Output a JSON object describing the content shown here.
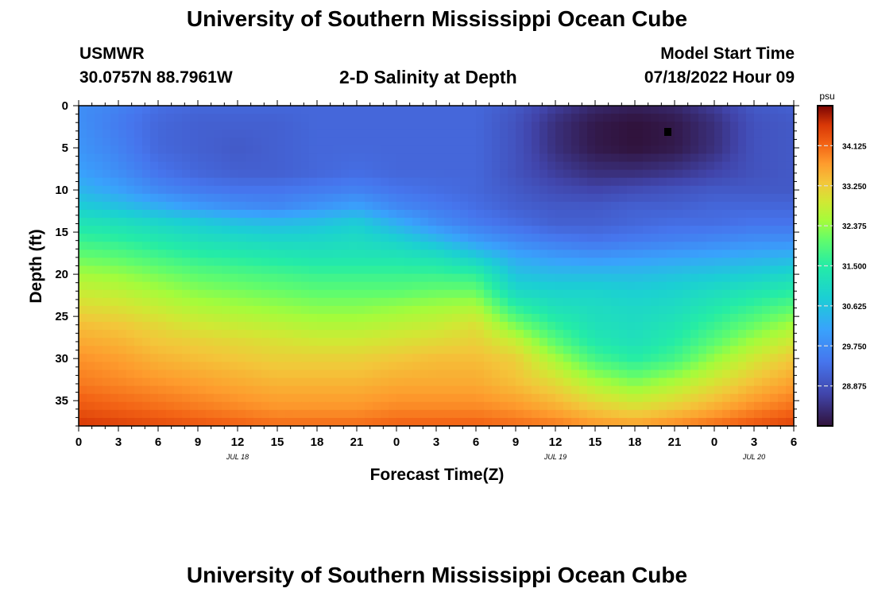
{
  "page": {
    "title": "University of Southern Mississippi Ocean Cube",
    "footer_title": "University of Southern Mississippi Ocean Cube"
  },
  "header": {
    "station": "USMWR",
    "coords": "30.0757N  88.7961W",
    "plot_title": "2-D Salinity at Depth",
    "model_label": "Model Start Time",
    "model_time": "07/18/2022 Hour 09"
  },
  "chart_data": {
    "type": "heatmap",
    "title": "2-D Salinity at Depth",
    "xlabel": "Forecast Time(Z)",
    "ylabel": "Depth (ft)",
    "x_start": 0,
    "x_end": 54,
    "x_ticks": [
      {
        "hour": 0,
        "label": "0"
      },
      {
        "hour": 3,
        "label": "3"
      },
      {
        "hour": 6,
        "label": "6"
      },
      {
        "hour": 9,
        "label": "9"
      },
      {
        "hour": 12,
        "label": "12"
      },
      {
        "hour": 15,
        "label": "15"
      },
      {
        "hour": 18,
        "label": "18"
      },
      {
        "hour": 21,
        "label": "21"
      },
      {
        "hour": 24,
        "label": "0"
      },
      {
        "hour": 27,
        "label": "3"
      },
      {
        "hour": 30,
        "label": "6"
      },
      {
        "hour": 33,
        "label": "9"
      },
      {
        "hour": 36,
        "label": "12"
      },
      {
        "hour": 39,
        "label": "15"
      },
      {
        "hour": 42,
        "label": "18"
      },
      {
        "hour": 45,
        "label": "21"
      },
      {
        "hour": 48,
        "label": "0"
      },
      {
        "hour": 51,
        "label": "3"
      },
      {
        "hour": 54,
        "label": "6"
      }
    ],
    "date_labels": [
      {
        "hour": 12,
        "label": "JUL 18"
      },
      {
        "hour": 36,
        "label": "JUL 19"
      },
      {
        "hour": 51,
        "label": "JUL 20"
      }
    ],
    "ylim": [
      0,
      38
    ],
    "y_ticks": [
      0,
      5,
      10,
      15,
      20,
      25,
      30,
      35
    ],
    "colorbar": {
      "unit": "psu",
      "min": 28.0,
      "max": 35.0,
      "tick_values": [
        28.875,
        29.75,
        30.625,
        31.5,
        32.375,
        33.25,
        34.125
      ],
      "tick_labels": [
        "28.875",
        "29.750",
        "30.625",
        "31.500",
        "32.375",
        "33.250",
        "34.125"
      ]
    },
    "z_hours": [
      0,
      3,
      6,
      9,
      12,
      15,
      18,
      21,
      24,
      27,
      30,
      33,
      36,
      39,
      42,
      45,
      48,
      51,
      54
    ],
    "z_depths": [
      0,
      2,
      5,
      8,
      10,
      12,
      14,
      16,
      18,
      20,
      22,
      24,
      26,
      28,
      30,
      33,
      36,
      38
    ],
    "z_values": [
      [
        29.8,
        29.6,
        29.3,
        29.2,
        29.2,
        29.2,
        29.2,
        29.2,
        29.2,
        29.2,
        29.2,
        29.0,
        28.6,
        28.3,
        28.2,
        28.3,
        28.6,
        29.0,
        29.1
      ],
      [
        29.8,
        29.5,
        29.2,
        29.1,
        29.1,
        29.1,
        29.2,
        29.2,
        29.2,
        29.2,
        29.2,
        28.9,
        28.4,
        28.1,
        28.0,
        28.1,
        28.4,
        28.9,
        29.0
      ],
      [
        29.9,
        29.6,
        29.2,
        29.1,
        29.0,
        29.1,
        29.2,
        29.2,
        29.2,
        29.2,
        29.2,
        28.9,
        28.4,
        28.1,
        28.0,
        28.1,
        28.4,
        28.9,
        29.0
      ],
      [
        30.1,
        29.8,
        29.4,
        29.2,
        29.1,
        29.1,
        29.2,
        29.3,
        29.2,
        29.2,
        29.2,
        28.9,
        28.6,
        28.4,
        28.4,
        28.5,
        28.7,
        28.9,
        29.0
      ],
      [
        30.4,
        30.1,
        29.7,
        29.5,
        29.4,
        29.4,
        29.5,
        29.6,
        29.4,
        29.3,
        29.2,
        29.0,
        28.8,
        28.7,
        28.8,
        28.9,
        29.0,
        29.0,
        29.0
      ],
      [
        30.8,
        30.6,
        30.3,
        30.0,
        29.8,
        29.7,
        29.9,
        30.1,
        29.7,
        29.5,
        29.3,
        29.1,
        29.0,
        29.0,
        29.1,
        29.1,
        29.2,
        29.2,
        29.2
      ],
      [
        31.3,
        31.2,
        31.0,
        30.8,
        30.6,
        30.5,
        30.6,
        30.8,
        30.3,
        29.8,
        29.5,
        29.3,
        29.1,
        29.1,
        29.2,
        29.3,
        29.3,
        29.4,
        29.4
      ],
      [
        31.7,
        31.6,
        31.4,
        31.2,
        31.1,
        31.0,
        31.0,
        31.1,
        30.9,
        30.5,
        30.0,
        29.7,
        29.5,
        29.4,
        29.5,
        29.6,
        29.7,
        29.8,
        29.8
      ],
      [
        32.1,
        32.0,
        31.8,
        31.6,
        31.5,
        31.4,
        31.3,
        31.3,
        31.3,
        31.2,
        30.8,
        30.2,
        30.0,
        29.9,
        30.0,
        30.1,
        30.2,
        30.3,
        30.4
      ],
      [
        32.5,
        32.4,
        32.2,
        32.0,
        31.9,
        31.8,
        31.7,
        31.7,
        31.7,
        31.7,
        31.6,
        30.6,
        30.5,
        30.5,
        30.5,
        30.6,
        30.7,
        30.8,
        31.0
      ],
      [
        32.8,
        32.7,
        32.5,
        32.3,
        32.2,
        32.1,
        32.0,
        32.0,
        32.0,
        32.1,
        32.1,
        31.0,
        30.9,
        30.9,
        30.8,
        30.9,
        31.1,
        31.3,
        31.5
      ],
      [
        33.1,
        33.0,
        32.8,
        32.6,
        32.5,
        32.4,
        32.3,
        32.3,
        32.4,
        32.5,
        32.6,
        31.6,
        31.2,
        31.1,
        31.0,
        31.1,
        31.4,
        31.7,
        32.0
      ],
      [
        33.4,
        33.3,
        33.1,
        32.9,
        32.8,
        32.7,
        32.6,
        32.6,
        32.7,
        32.8,
        33.0,
        32.2,
        31.6,
        31.2,
        31.1,
        31.3,
        31.7,
        32.1,
        32.5
      ],
      [
        33.6,
        33.5,
        33.3,
        33.2,
        33.1,
        33.0,
        32.9,
        32.9,
        33.0,
        33.1,
        33.2,
        32.8,
        32.0,
        31.4,
        31.2,
        31.5,
        32.0,
        32.5,
        32.9
      ],
      [
        33.8,
        33.7,
        33.5,
        33.4,
        33.3,
        33.2,
        33.2,
        33.2,
        33.3,
        33.4,
        33.4,
        33.2,
        32.5,
        31.8,
        31.5,
        31.8,
        32.4,
        32.9,
        33.3
      ],
      [
        34.0,
        33.9,
        33.8,
        33.7,
        33.6,
        33.5,
        33.5,
        33.5,
        33.6,
        33.6,
        33.6,
        33.4,
        33.1,
        32.6,
        32.3,
        32.6,
        33.0,
        33.4,
        33.7
      ],
      [
        34.3,
        34.2,
        34.1,
        34.0,
        33.9,
        33.8,
        33.8,
        33.8,
        33.9,
        33.9,
        33.9,
        33.8,
        33.6,
        33.3,
        33.1,
        33.3,
        33.6,
        33.9,
        34.1
      ],
      [
        34.6,
        34.5,
        34.4,
        34.3,
        34.2,
        34.1,
        34.1,
        34.1,
        34.2,
        34.2,
        34.2,
        34.1,
        34.0,
        33.8,
        33.7,
        33.9,
        34.1,
        34.3,
        34.5
      ]
    ]
  }
}
